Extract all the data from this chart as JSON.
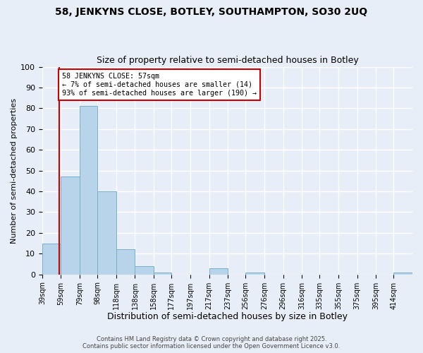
{
  "title": "58, JENKYNS CLOSE, BOTLEY, SOUTHAMPTON, SO30 2UQ",
  "subtitle": "Size of property relative to semi-detached houses in Botley",
  "xlabel": "Distribution of semi-detached houses by size in Botley",
  "ylabel": "Number of semi-detached properties",
  "bins": [
    39,
    59,
    79,
    98,
    118,
    138,
    158,
    177,
    197,
    217,
    237,
    256,
    276,
    296,
    316,
    335,
    355,
    375,
    395,
    414,
    434
  ],
  "counts": [
    15,
    47,
    81,
    40,
    12,
    4,
    1,
    0,
    0,
    3,
    0,
    1,
    0,
    0,
    0,
    0,
    0,
    0,
    0,
    1
  ],
  "bar_color": "#b8d4ea",
  "bar_edge_color": "#7aafc8",
  "property_size": 57,
  "vline_color": "#cc0000",
  "ylim": [
    0,
    100
  ],
  "yticks": [
    0,
    10,
    20,
    30,
    40,
    50,
    60,
    70,
    80,
    90,
    100
  ],
  "annotation_title": "58 JENKYNS CLOSE: 57sqm",
  "annotation_line1": "← 7% of semi-detached houses are smaller (14)",
  "annotation_line2": "93% of semi-detached houses are larger (190) →",
  "annotation_box_color": "#ffffff",
  "annotation_box_edge": "#cc0000",
  "footer_line1": "Contains HM Land Registry data © Crown copyright and database right 2025.",
  "footer_line2": "Contains public sector information licensed under the Open Government Licence v3.0.",
  "bg_color": "#e8eef8",
  "grid_color": "#ffffff",
  "title_fontsize": 10,
  "subtitle_fontsize": 9,
  "tick_fontsize": 7,
  "ylabel_fontsize": 8,
  "xlabel_fontsize": 9
}
